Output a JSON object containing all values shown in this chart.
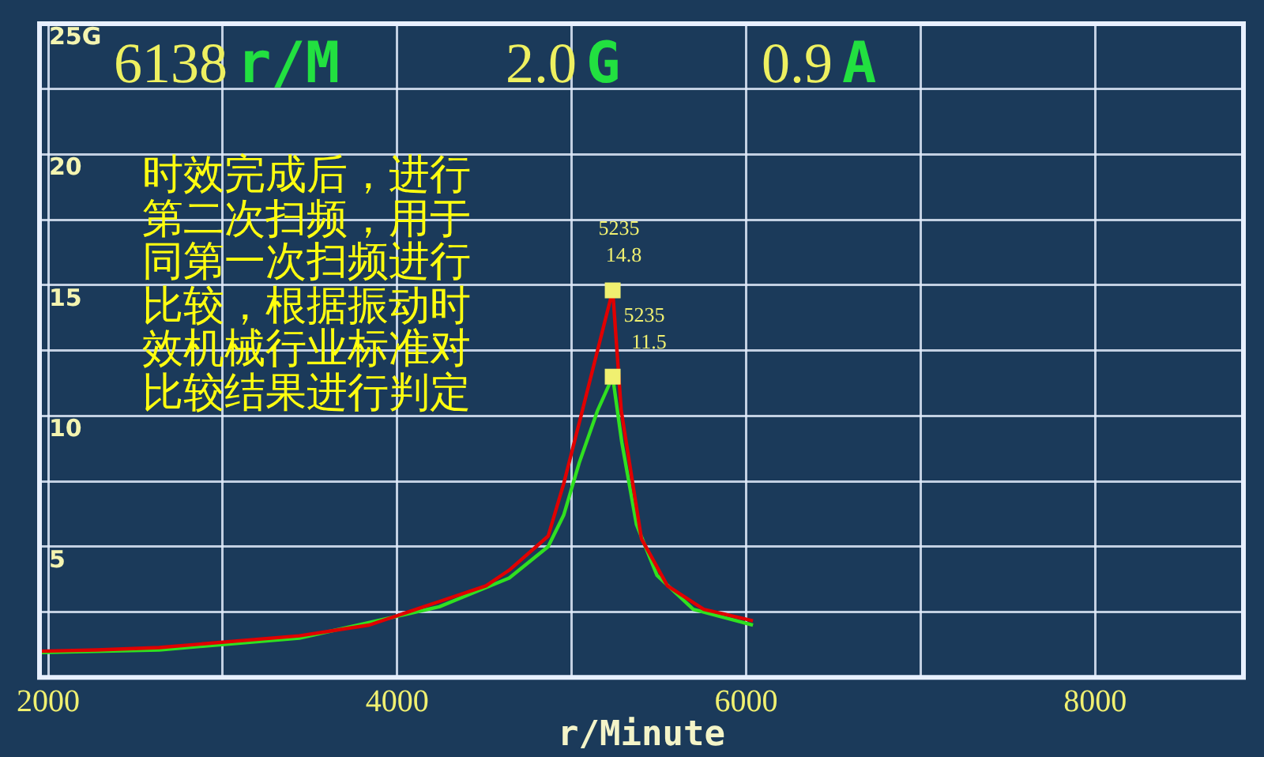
{
  "chart_data": {
    "type": "line",
    "xlabel": "r/Minute",
    "xlim": [
      1950,
      8850
    ],
    "xticks": [
      2000,
      {
        "value": 3000,
        "label": null
      },
      4000,
      {
        "value": 5000,
        "label": null
      },
      6000,
      {
        "value": 7000,
        "label": null
      },
      8000
    ],
    "ylim": [
      0,
      25
    ],
    "yticks": [
      {
        "value": 0,
        "label": null
      },
      {
        "value": 2.5,
        "label": null
      },
      5,
      {
        "value": 7.5,
        "label": null
      },
      10,
      {
        "value": 12.5,
        "label": null
      },
      15,
      {
        "value": 17.5,
        "label": null
      },
      20,
      {
        "value": 22.5,
        "label": null
      },
      {
        "value": 25,
        "label": "25G"
      }
    ],
    "grid": true,
    "marker": "none",
    "line_style": "solid",
    "annotations": [
      "6138 r/M",
      "2.0 G",
      "0.9 A",
      "时效完成后，进行第二次扫频，用于同第一次扫频进行比较，根据振动时效机械行业标准对比较结果进行判定",
      {
        "text": "5235\n14.8",
        "x": 5235,
        "y": 14.8
      },
      {
        "text": "5235\n11.5",
        "x": 5235,
        "y": 11.5
      }
    ],
    "series": [
      {
        "color": "#e00000",
        "x": [
          1950,
          2280,
          2636,
          3439,
          3840,
          4241,
          4509,
          4642,
          4865,
          4954,
          5061,
          5235,
          5284,
          5400,
          5549,
          5757,
          6039
        ],
        "values": [
          1.0,
          1.05,
          1.14,
          1.59,
          2.0,
          2.9,
          3.5,
          4.1,
          5.4,
          7.4,
          10.2,
          14.8,
          10.2,
          5.3,
          3.5,
          2.6,
          2.16
        ]
      },
      {
        "color": "#30e020",
        "x": [
          1950,
          2636,
          3439,
          4241,
          4642,
          4865,
          4954,
          5043,
          5148,
          5235,
          5287,
          5371,
          5489,
          5697,
          6039
        ],
        "values": [
          0.95,
          1.05,
          1.5,
          2.7,
          3.8,
          5.0,
          6.2,
          8.2,
          10.2,
          11.5,
          9.0,
          5.85,
          3.9,
          2.6,
          2.0
        ]
      }
    ]
  }
}
